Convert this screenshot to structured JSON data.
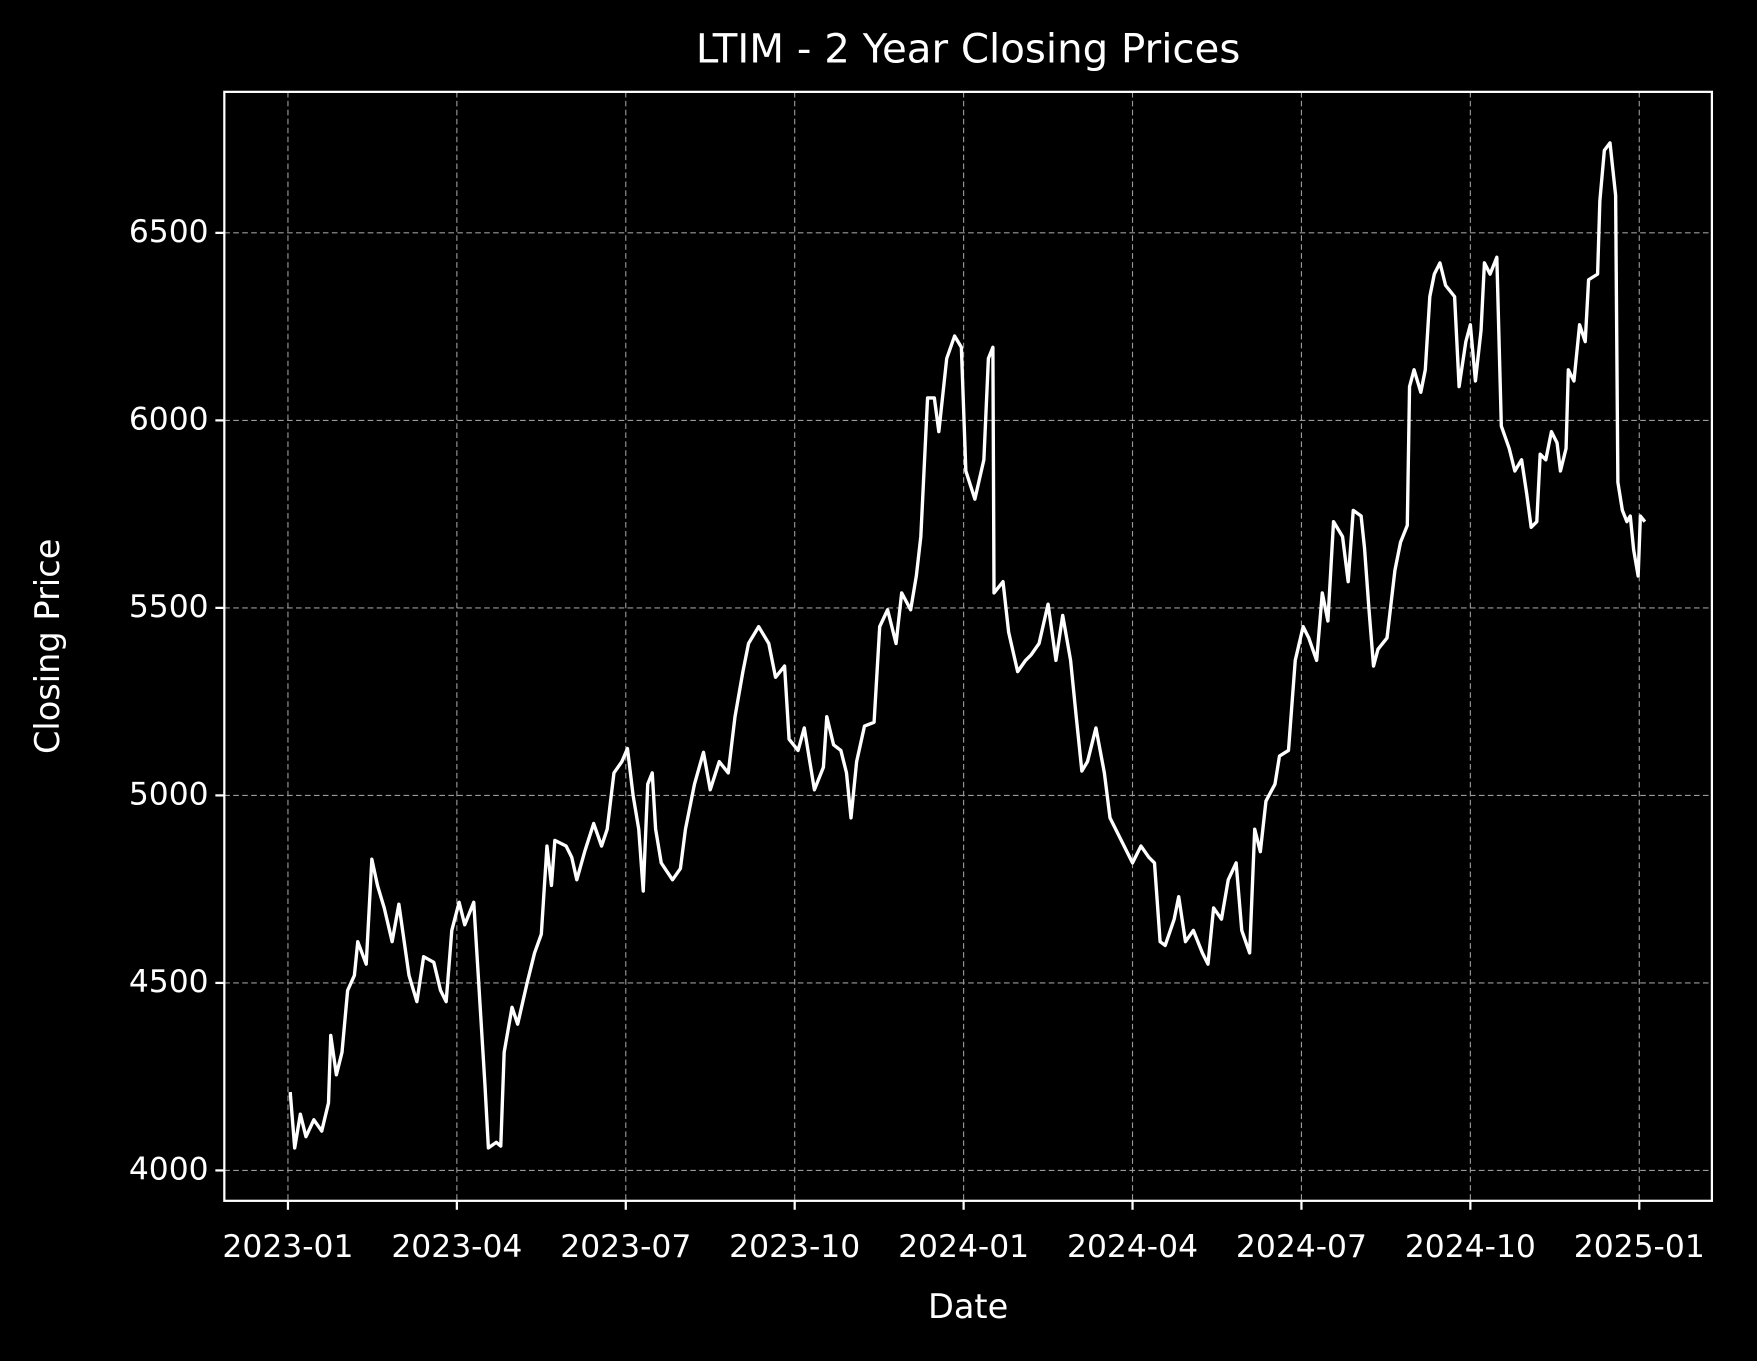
{
  "chart_data": {
    "type": "line",
    "title": "LTIM - 2 Year Closing Prices",
    "xlabel": "Date",
    "ylabel": "Closing Price",
    "x": [
      0.04,
      0.12,
      0.22,
      0.32,
      0.46,
      0.6,
      0.72,
      0.76,
      0.86,
      0.96,
      1.06,
      1.18,
      1.24,
      1.39,
      1.49,
      1.59,
      1.71,
      1.85,
      1.97,
      2.15,
      2.29,
      2.41,
      2.59,
      2.71,
      2.81,
      2.91,
      3.04,
      3.14,
      3.3,
      3.38,
      3.5,
      3.56,
      3.7,
      3.78,
      3.84,
      3.98,
      4.08,
      4.24,
      4.38,
      4.5,
      4.6,
      4.68,
      4.74,
      4.94,
      5.04,
      5.13,
      5.27,
      5.43,
      5.57,
      5.67,
      5.79,
      5.93,
      6.03,
      6.13,
      6.23,
      6.31,
      6.39,
      6.47,
      6.53,
      6.63,
      6.83,
      6.97,
      7.06,
      7.22,
      7.38,
      7.5,
      7.66,
      7.82,
      7.94,
      8.08,
      8.18,
      8.36,
      8.54,
      8.66,
      8.82,
      8.9,
      9.06,
      9.17,
      9.35,
      9.51,
      9.57,
      9.69,
      9.82,
      9.92,
      10.0,
      10.1,
      10.24,
      10.41,
      10.51,
      10.65,
      10.8,
      10.9,
      11.06,
      11.16,
      11.24,
      11.36,
      11.48,
      11.56,
      11.7,
      11.84,
      11.96,
      12.04,
      12.2,
      12.36,
      12.44,
      12.52,
      12.54,
      12.7,
      12.8,
      12.96,
      13.1,
      13.2,
      13.34,
      13.5,
      13.64,
      13.76,
      13.9,
      14.0,
      14.1,
      14.2,
      14.35,
      14.5,
      14.6,
      14.8,
      15.0,
      15.15,
      15.29,
      15.39,
      15.49,
      15.58,
      15.74,
      15.82,
      15.94,
      16.08,
      16.24,
      16.34,
      16.44,
      16.58,
      16.7,
      16.84,
      16.94,
      17.08,
      17.17,
      17.27,
      17.37,
      17.53,
      17.61,
      17.77,
      17.89,
      18.03,
      18.13,
      18.27,
      18.37,
      18.47,
      18.57,
      18.73,
      18.83,
      18.92,
      19.06,
      19.12,
      19.2,
      19.28,
      19.36,
      19.52,
      19.66,
      19.76,
      19.88,
      19.92,
      20.0,
      20.12,
      20.2,
      20.28,
      20.36,
      20.46,
      20.56,
      20.72,
      20.8,
      20.92,
      21.0,
      21.09,
      21.19,
      21.25,
      21.35,
      21.47,
      21.55,
      21.69,
      21.79,
      21.91,
      22.0,
      22.08,
      22.18,
      22.24,
      22.34,
      22.44,
      22.54,
      22.6,
      22.7,
      22.74,
      22.84,
      22.94,
      23.04,
      23.1,
      23.26,
      23.3,
      23.38,
      23.48,
      23.58,
      23.62,
      23.7,
      23.78,
      23.84,
      23.9,
      23.98,
      24.02,
      24.1
    ],
    "series": [
      {
        "color": "#ffffff",
        "values": [
          4209,
          4060,
          4150,
          4090,
          4135,
          4105,
          4180,
          4360,
          4255,
          4315,
          4480,
          4520,
          4610,
          4550,
          4830,
          4760,
          4700,
          4610,
          4710,
          4520,
          4450,
          4570,
          4555,
          4480,
          4450,
          4640,
          4715,
          4655,
          4715,
          4520,
          4225,
          4060,
          4075,
          4065,
          4315,
          4435,
          4390,
          4495,
          4580,
          4630,
          4865,
          4760,
          4880,
          4865,
          4835,
          4775,
          4850,
          4925,
          4865,
          4910,
          5060,
          5090,
          5125,
          5000,
          4910,
          4745,
          5030,
          5060,
          4910,
          4820,
          4775,
          4805,
          4910,
          5030,
          5115,
          5015,
          5090,
          5060,
          5210,
          5330,
          5405,
          5450,
          5405,
          5315,
          5345,
          5150,
          5120,
          5180,
          5015,
          5075,
          5210,
          5135,
          5120,
          5060,
          4940,
          5090,
          5185,
          5195,
          5450,
          5495,
          5405,
          5540,
          5495,
          5585,
          5690,
          6060,
          6060,
          5970,
          6165,
          6225,
          6195,
          5865,
          5790,
          5895,
          6165,
          6195,
          5540,
          5570,
          5435,
          5330,
          5360,
          5375,
          5405,
          5510,
          5360,
          5480,
          5360,
          5210,
          5065,
          5090,
          5180,
          5060,
          4940,
          4880,
          4820,
          4865,
          4835,
          4820,
          4610,
          4600,
          4670,
          4730,
          4610,
          4640,
          4580,
          4550,
          4700,
          4670,
          4775,
          4820,
          4640,
          4580,
          4910,
          4850,
          4985,
          5030,
          5105,
          5120,
          5360,
          5450,
          5420,
          5360,
          5540,
          5465,
          5730,
          5690,
          5570,
          5760,
          5745,
          5660,
          5495,
          5345,
          5390,
          5420,
          5600,
          5675,
          5720,
          6090,
          6135,
          6075,
          6135,
          6330,
          6390,
          6420,
          6360,
          6330,
          6090,
          6210,
          6255,
          6105,
          6240,
          6420,
          6390,
          6435,
          5985,
          5925,
          5865,
          5895,
          5805,
          5715,
          5730,
          5910,
          5895,
          5970,
          5940,
          5865,
          5925,
          6135,
          6105,
          6255,
          6210,
          6375,
          6390,
          6585,
          6720,
          6740,
          6600,
          5835,
          5760,
          5730,
          5745,
          5655,
          5585,
          5745,
          5730
        ]
      }
    ],
    "xlim": [
      -1.13,
      25.29
    ],
    "xticks": [
      {
        "value": 0,
        "label": "2023-01"
      },
      {
        "value": 3,
        "label": "2023-04"
      },
      {
        "value": 6,
        "label": "2023-07"
      },
      {
        "value": 9,
        "label": "2023-10"
      },
      {
        "value": 12,
        "label": "2024-01"
      },
      {
        "value": 15,
        "label": "2024-04"
      },
      {
        "value": 18,
        "label": "2024-07"
      },
      {
        "value": 21,
        "label": "2024-10"
      },
      {
        "value": 24,
        "label": "2025-01"
      }
    ],
    "ylim": [
      3919,
      6876
    ],
    "yticks": [
      4000,
      4500,
      5000,
      5500,
      6000,
      6500
    ],
    "grid": true
  }
}
